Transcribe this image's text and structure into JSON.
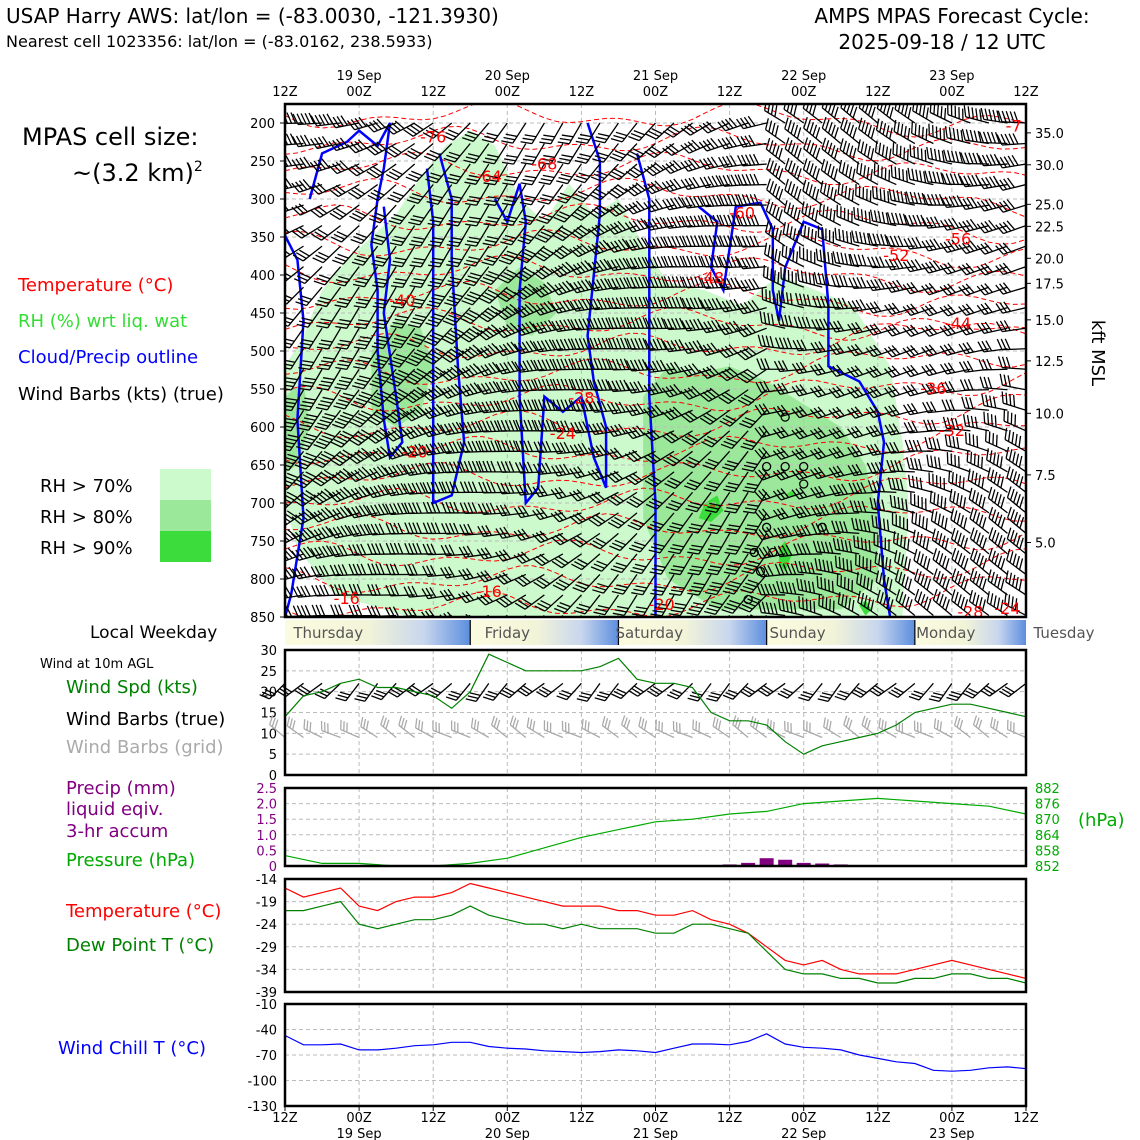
{
  "header": {
    "station": "USAP Harry AWS: lat/lon = (-83.0030, -121.3930)",
    "nearest": "Nearest cell 1023356: lat/lon = (-83.0162, 238.5933)",
    "cycle_line1": "AMPS MPAS Forecast Cycle:",
    "cycle_line2": "2025-09-18 / 12 UTC"
  },
  "time_axis": {
    "hours": [
      "12Z",
      "00Z",
      "12Z",
      "00Z",
      "12Z",
      "00Z",
      "12Z",
      "00Z",
      "12Z",
      "00Z",
      "12Z"
    ],
    "dates": [
      "",
      "19 Sep",
      "",
      "20 Sep",
      "",
      "21 Sep",
      "",
      "22 Sep",
      "",
      "23 Sep",
      ""
    ]
  },
  "cell_size": {
    "line1": "MPAS cell size:",
    "line2": "~(3.2 km)",
    "sup": "2"
  },
  "legend_left": {
    "temperature": "Temperature (°C)",
    "rh": "RH (%) wrt liq. wat",
    "cloud": "Cloud/Precip outline",
    "barbs": "Wind Barbs (kts) (true)"
  },
  "rh_key": [
    {
      "label": "RH > 70%",
      "color": "#ccfacc"
    },
    {
      "label": "RH > 80%",
      "color": "#9be89b"
    },
    {
      "label": "RH > 90%",
      "color": "#3ddc3d"
    }
  ],
  "colors": {
    "temperature": "#ff0000",
    "cloud": "#0000ff",
    "wind_speed": "#008000",
    "grid_barbs": "#aaaaaa",
    "precip": "#800080",
    "pressure": "#00aa00",
    "dew_point": "#008000",
    "wind_chill": "#0000ff"
  },
  "weekday": {
    "label": "Local Weekday",
    "days": [
      "Thursday",
      "Friday",
      "Saturday",
      "Sunday",
      "Monday",
      "Tuesday"
    ]
  },
  "wind_panel": {
    "title": "Wind at 10m AGL",
    "spd": "Wind Spd (kts)",
    "barbs_true": "Wind Barbs (true)",
    "barbs_grid": "Wind Barbs (grid)"
  },
  "precip_panel": {
    "precip1": "Precip (mm)",
    "precip2": "liquid eqiv.",
    "precip3": "3-hr accum",
    "pressure": "Pressure (hPa)",
    "hpa": "(hPa)"
  },
  "temp_panel": {
    "temp": "Temperature (°C)",
    "dew": "Dew Point T (°C)"
  },
  "chill_panel": {
    "label": "Wind Chill T (°C)"
  },
  "right_axis_label": "kft MSL",
  "chart_data": [
    {
      "type": "contour",
      "panel": "upper",
      "x_range_hours": [
        0,
        120
      ],
      "y_label_left_ticks": [
        "200",
        "250",
        "300",
        "350",
        "400",
        "450",
        "500",
        "550",
        "600",
        "650",
        "700",
        "750",
        "800",
        "850"
      ],
      "y_left_values": [
        200,
        250,
        300,
        350,
        400,
        450,
        500,
        550,
        600,
        650,
        700,
        750,
        800,
        850
      ],
      "y_right_ticks": [
        "35.0",
        "30.0",
        "25.0",
        "22.5",
        "20.0",
        "17.5",
        "15.0",
        "12.5",
        "10.0",
        "7.5",
        "5.0"
      ],
      "y_right_pressure": [
        213,
        255,
        307,
        336,
        378,
        411,
        459,
        513,
        582,
        663,
        752
      ],
      "temperature_labels": [
        {
          "text": "-76",
          "t": 24,
          "p": 218
        },
        {
          "text": "-68",
          "t": 42,
          "p": 253
        },
        {
          "text": "-64",
          "t": 33,
          "p": 270
        },
        {
          "text": "-60",
          "t": 74,
          "p": 318
        },
        {
          "text": "-56",
          "t": 109,
          "p": 352
        },
        {
          "text": "-52",
          "t": 99,
          "p": 374
        },
        {
          "text": "-48",
          "t": 69,
          "p": 403
        },
        {
          "text": "-44",
          "t": 109,
          "p": 463
        },
        {
          "text": "-40",
          "t": 19,
          "p": 433
        },
        {
          "text": "-36",
          "t": 105,
          "p": 549
        },
        {
          "text": "-32",
          "t": 108,
          "p": 604
        },
        {
          "text": "-28",
          "t": 48,
          "p": 561
        },
        {
          "text": "-24",
          "t": 45,
          "p": 608
        },
        {
          "text": "-20",
          "t": 21,
          "p": 632
        },
        {
          "text": "-20",
          "t": 61,
          "p": 833
        },
        {
          "text": "-16",
          "t": 10,
          "p": 825
        },
        {
          "text": "-16",
          "t": 33,
          "p": 816
        },
        {
          "text": "-28",
          "t": 111,
          "p": 843
        },
        {
          "text": "-24",
          "t": 117,
          "p": 838
        },
        {
          "text": "-7",
          "t": 118,
          "p": 203
        }
      ],
      "cloud_outline": [
        [
          [
            0,
            348
          ],
          [
            2,
            380
          ],
          [
            3,
            460
          ],
          [
            2,
            590
          ],
          [
            3,
            720
          ],
          [
            1,
            820
          ],
          [
            0,
            850
          ]
        ],
        [
          [
            4,
            300
          ],
          [
            6,
            240
          ],
          [
            10,
            225
          ],
          [
            12,
            210
          ],
          [
            15,
            230
          ],
          [
            17,
            200
          ],
          [
            16,
            260
          ],
          [
            15,
            300
          ],
          [
            14,
            360
          ],
          [
            15,
            420
          ],
          [
            15,
            500
          ],
          [
            16,
            590
          ],
          [
            17,
            640
          ],
          [
            19,
            620
          ],
          [
            18,
            560
          ],
          [
            16,
            450
          ],
          [
            17,
            380
          ],
          [
            16,
            310
          ]
        ],
        [
          [
            23,
            260
          ],
          [
            24,
            330
          ],
          [
            24,
            430
          ],
          [
            24,
            560
          ],
          [
            24,
            700
          ],
          [
            27,
            690
          ],
          [
            29,
            620
          ],
          [
            28,
            520
          ],
          [
            27,
            380
          ],
          [
            27,
            300
          ],
          [
            25,
            240
          ]
        ],
        [
          [
            34,
            300
          ],
          [
            36,
            330
          ],
          [
            38,
            280
          ],
          [
            39,
            330
          ],
          [
            38,
            420
          ],
          [
            38,
            560
          ],
          [
            39,
            700
          ],
          [
            41,
            680
          ],
          [
            42,
            560
          ],
          [
            45,
            580
          ],
          [
            48,
            560
          ],
          [
            50,
            640
          ],
          [
            52,
            680
          ],
          [
            52,
            600
          ],
          [
            50,
            540
          ],
          [
            49,
            480
          ],
          [
            50,
            400
          ],
          [
            51,
            320
          ],
          [
            51,
            250
          ],
          [
            49,
            200
          ]
        ],
        [
          [
            57,
            240
          ],
          [
            59,
            300
          ],
          [
            59,
            420
          ],
          [
            59,
            560
          ],
          [
            60,
            700
          ],
          [
            60,
            850
          ]
        ],
        [
          [
            67,
            310
          ],
          [
            70,
            330
          ],
          [
            69,
            390
          ],
          [
            71,
            420
          ],
          [
            73,
            310
          ],
          [
            77,
            305
          ],
          [
            79,
            340
          ],
          [
            79,
            420
          ],
          [
            80,
            460
          ],
          [
            81,
            390
          ],
          [
            84,
            330
          ],
          [
            87,
            340
          ],
          [
            88,
            440
          ],
          [
            88,
            520
          ],
          [
            93,
            540
          ],
          [
            96,
            580
          ],
          [
            97,
            620
          ],
          [
            96,
            700
          ],
          [
            97,
            800
          ],
          [
            98,
            850
          ]
        ]
      ],
      "snow_markers": [
        {
          "t": 81,
          "p": 587
        },
        {
          "t": 78,
          "p": 652
        },
        {
          "t": 81,
          "p": 652
        },
        {
          "t": 84,
          "p": 652
        },
        {
          "t": 84,
          "p": 675
        },
        {
          "t": 78,
          "p": 732
        },
        {
          "t": 87,
          "p": 732
        },
        {
          "t": 76,
          "p": 765
        },
        {
          "t": 79,
          "p": 765
        },
        {
          "t": 77,
          "p": 790
        },
        {
          "t": 75,
          "p": 827
        }
      ]
    },
    {
      "type": "line",
      "panel": "wind",
      "title": "Wind at 10m AGL",
      "ylim": [
        0,
        30
      ],
      "yticks": [
        "30",
        "25",
        "20",
        "15",
        "10",
        "5",
        "0"
      ],
      "x": [
        0,
        3,
        6,
        9,
        12,
        15,
        18,
        21,
        24,
        27,
        30,
        33,
        36,
        39,
        42,
        45,
        48,
        51,
        54,
        57,
        60,
        63,
        66,
        69,
        72,
        75,
        78,
        81,
        84,
        87,
        90,
        93,
        96,
        99,
        102,
        105,
        108,
        111,
        114,
        117,
        120
      ],
      "series": [
        {
          "name": "Wind Spd (kts)",
          "values": [
            14,
            19,
            20,
            22,
            23,
            21,
            21,
            20,
            19,
            16,
            20,
            29,
            27,
            25,
            25,
            25,
            25,
            26,
            28,
            23,
            22,
            22,
            21,
            15,
            13,
            13,
            12,
            8,
            5,
            7,
            8,
            9,
            10,
            12,
            15,
            16,
            17,
            17,
            16,
            15,
            14
          ]
        }
      ]
    },
    {
      "type": "bar+line",
      "panel": "precip_pressure",
      "ylim_left": [
        0,
        2.5
      ],
      "yticks_left": [
        "2.5",
        "2.0",
        "1.5",
        "1.0",
        "0.5",
        "0"
      ],
      "ylim_right": [
        852,
        882
      ],
      "yticks_right": [
        "882",
        "876",
        "870",
        "864",
        "858",
        "852"
      ],
      "precip_bars": [
        {
          "t": 72,
          "v": 0.05
        },
        {
          "t": 75,
          "v": 0.1
        },
        {
          "t": 78,
          "v": 0.25
        },
        {
          "t": 81,
          "v": 0.2
        },
        {
          "t": 84,
          "v": 0.1
        },
        {
          "t": 87,
          "v": 0.08
        },
        {
          "t": 90,
          "v": 0.05
        }
      ],
      "pressure": {
        "x": [
          0,
          6,
          12,
          18,
          24,
          30,
          36,
          42,
          48,
          54,
          60,
          66,
          72,
          78,
          84,
          90,
          96,
          102,
          108,
          114,
          120
        ],
        "values": [
          856,
          853,
          853,
          852,
          852,
          853,
          855,
          859,
          863,
          866,
          869,
          870,
          872,
          873,
          876,
          877,
          878,
          877,
          876,
          875,
          872
        ]
      }
    },
    {
      "type": "line",
      "panel": "temperature",
      "ylim": [
        -39,
        -14
      ],
      "yticks": [
        "-14",
        "-19",
        "-24",
        "-29",
        "-34",
        "-39"
      ],
      "x": [
        0,
        3,
        6,
        9,
        12,
        15,
        18,
        21,
        24,
        27,
        30,
        33,
        36,
        39,
        42,
        45,
        48,
        51,
        54,
        57,
        60,
        63,
        66,
        69,
        72,
        75,
        78,
        81,
        84,
        87,
        90,
        93,
        96,
        99,
        102,
        105,
        108,
        111,
        114,
        117,
        120
      ],
      "series": [
        {
          "name": "Temperature (°C)",
          "values": [
            -16,
            -18,
            -17,
            -16,
            -20,
            -21,
            -19,
            -18,
            -18,
            -17,
            -15,
            -16,
            -17,
            -18,
            -19,
            -20,
            -20,
            -20,
            -21,
            -21,
            -22,
            -22,
            -21,
            -23,
            -24,
            -26,
            -29,
            -32,
            -33,
            -32,
            -34,
            -35,
            -35,
            -35,
            -34,
            -33,
            -32,
            -33,
            -34,
            -35,
            -36
          ]
        },
        {
          "name": "Dew Point T (°C)",
          "values": [
            -21,
            -21,
            -20,
            -19,
            -24,
            -25,
            -24,
            -23,
            -23,
            -22,
            -20,
            -22,
            -23,
            -24,
            -24,
            -25,
            -24,
            -25,
            -25,
            -25,
            -26,
            -26,
            -24,
            -24,
            -25,
            -26,
            -30,
            -34,
            -35,
            -35,
            -36,
            -36,
            -37,
            -37,
            -36,
            -36,
            -35,
            -35,
            -36,
            -36,
            -37
          ]
        }
      ]
    },
    {
      "type": "line",
      "panel": "wind_chill",
      "ylim": [
        -130,
        -10
      ],
      "yticks": [
        "-10",
        "-40",
        "-70",
        "-100",
        "-130"
      ],
      "x": [
        0,
        3,
        6,
        9,
        12,
        15,
        18,
        21,
        24,
        27,
        30,
        33,
        36,
        39,
        42,
        45,
        48,
        51,
        54,
        57,
        60,
        63,
        66,
        69,
        72,
        75,
        78,
        81,
        84,
        87,
        90,
        93,
        96,
        99,
        102,
        105,
        108,
        111,
        114,
        117,
        120
      ],
      "series": [
        {
          "name": "Wind Chill T (°C)",
          "values": [
            -47,
            -58,
            -58,
            -57,
            -64,
            -64,
            -62,
            -59,
            -58,
            -55,
            -55,
            -60,
            -62,
            -63,
            -65,
            -66,
            -67,
            -66,
            -64,
            -65,
            -67,
            -62,
            -57,
            -57,
            -58,
            -54,
            -45,
            -57,
            -61,
            -62,
            -64,
            -70,
            -74,
            -78,
            -80,
            -88,
            -89,
            -88,
            -85,
            -84,
            -86
          ]
        }
      ]
    }
  ]
}
